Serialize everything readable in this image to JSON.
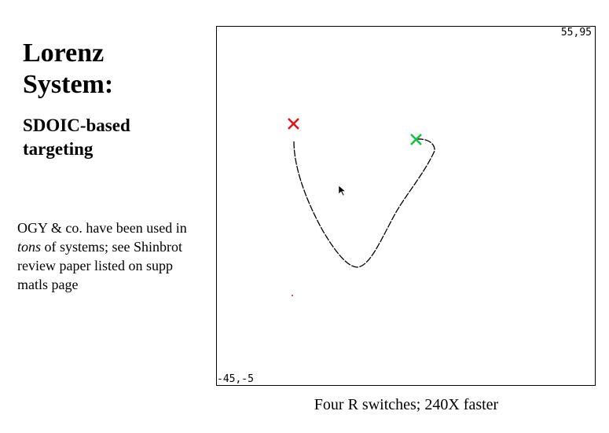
{
  "slide": {
    "title_line1": "Lorenz",
    "title_line2": "System:",
    "subtitle_line1": "SDOIC-based",
    "subtitle_line2": "targeting",
    "note": {
      "part1": "OGY & co. have been used in ",
      "emphasis": "tons",
      "part2": " of systems;  see Shinbrot review paper listed on supp matls page"
    },
    "caption": "Four R switches; 240X faster"
  },
  "plot": {
    "corner_top_right": "55,95",
    "corner_bottom_left": "-45,-5",
    "start_marker_color": "#e0101a",
    "target_marker_color": "#18c040",
    "trajectory_color": "#000000",
    "cursor_icon": "arrow-pointer"
  }
}
